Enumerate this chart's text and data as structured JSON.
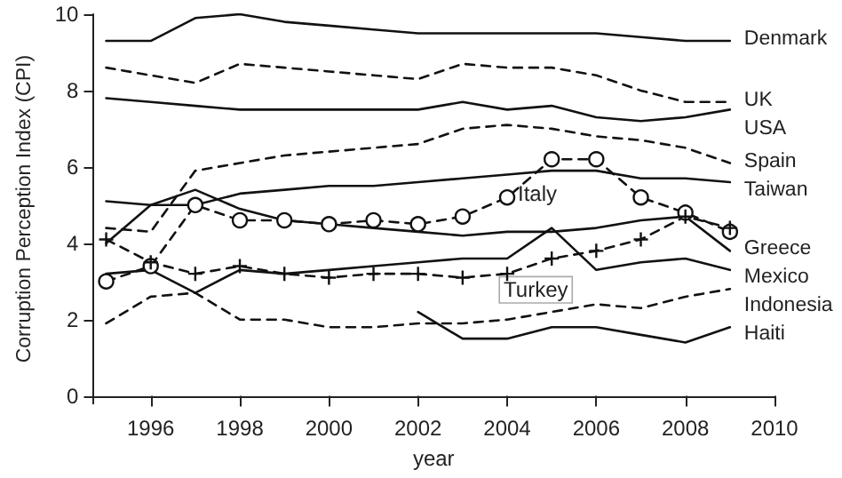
{
  "chart_data": {
    "type": "line",
    "xlabel": "year",
    "ylabel": "Corruption Perception Index (CPI)",
    "x": [
      1995,
      1996,
      1997,
      1998,
      1999,
      2000,
      2001,
      2002,
      2003,
      2004,
      2005,
      2006,
      2007,
      2008,
      2009
    ],
    "xlim": [
      1994.7,
      2010
    ],
    "xticks": [
      1996,
      1998,
      2000,
      2002,
      2004,
      2006,
      2008,
      2010
    ],
    "ylim": [
      -0.2,
      10
    ],
    "yticks": [
      0,
      2,
      4,
      6,
      8,
      10
    ],
    "grid": false,
    "legend": false,
    "marker": "none",
    "series": [
      {
        "name": "Denmark",
        "color": "#111111",
        "line_style": "solid",
        "values": [
          9.3,
          9.3,
          9.9,
          10.0,
          9.8,
          9.7,
          9.6,
          9.5,
          9.5,
          9.5,
          9.5,
          9.5,
          9.4,
          9.3,
          9.3
        ]
      },
      {
        "name": "UK",
        "color": "#111111",
        "line_style": "dashed",
        "values": [
          8.6,
          8.4,
          8.2,
          8.7,
          8.6,
          8.5,
          8.4,
          8.3,
          8.7,
          8.6,
          8.6,
          8.4,
          8.0,
          7.7,
          7.7
        ]
      },
      {
        "name": "USA",
        "color": "#111111",
        "line_style": "solid",
        "values": [
          7.8,
          7.7,
          7.6,
          7.5,
          7.5,
          7.5,
          7.5,
          7.5,
          7.7,
          7.5,
          7.6,
          7.3,
          7.2,
          7.3,
          7.5
        ]
      },
      {
        "name": "Spain",
        "color": "#111111",
        "line_style": "dashed",
        "values": [
          4.4,
          4.3,
          5.9,
          6.1,
          6.3,
          6.4,
          6.5,
          6.6,
          7.0,
          7.1,
          7.0,
          6.8,
          6.7,
          6.5,
          6.1
        ]
      },
      {
        "name": "Taiwan",
        "color": "#111111",
        "line_style": "solid",
        "values": [
          5.1,
          5.0,
          5.0,
          5.3,
          5.4,
          5.5,
          5.5,
          5.6,
          5.7,
          5.8,
          5.9,
          5.9,
          5.7,
          5.7,
          5.6
        ]
      },
      {
        "name": "Italy",
        "color": "#111111",
        "line_style": "dashed",
        "marker": "circle",
        "values": [
          3.0,
          3.4,
          5.0,
          4.6,
          4.6,
          4.5,
          4.6,
          4.5,
          4.7,
          5.2,
          6.2,
          6.2,
          5.2,
          4.8,
          4.3
        ]
      },
      {
        "name": "Greece",
        "color": "#111111",
        "line_style": "solid",
        "values": [
          4.0,
          5.0,
          5.4,
          4.9,
          4.6,
          4.5,
          4.4,
          4.3,
          4.2,
          4.3,
          4.3,
          4.4,
          4.6,
          4.7,
          3.8
        ]
      },
      {
        "name": "Turkey",
        "color": "#111111",
        "line_style": "dashed",
        "marker": "cross",
        "values": [
          4.1,
          3.5,
          3.2,
          3.4,
          3.2,
          3.1,
          3.2,
          3.2,
          3.1,
          3.2,
          3.6,
          3.8,
          4.1,
          4.7,
          4.4
        ]
      },
      {
        "name": "Mexico",
        "color": "#111111",
        "line_style": "solid",
        "values": [
          3.2,
          3.3,
          2.7,
          3.3,
          3.2,
          3.3,
          3.4,
          3.5,
          3.6,
          3.6,
          4.4,
          3.3,
          3.5,
          3.6,
          3.3
        ]
      },
      {
        "name": "Indonesia",
        "color": "#111111",
        "line_style": "dashed",
        "values": [
          1.9,
          2.6,
          2.7,
          2.0,
          2.0,
          1.8,
          1.8,
          1.9,
          1.9,
          2.0,
          2.2,
          2.4,
          2.3,
          2.6,
          2.8
        ]
      },
      {
        "name": "Haiti",
        "color": "#111111",
        "line_style": "solid",
        "values": [
          null,
          null,
          null,
          null,
          null,
          null,
          null,
          2.2,
          1.5,
          1.5,
          1.8,
          1.8,
          1.6,
          1.4,
          1.8
        ]
      }
    ]
  }
}
